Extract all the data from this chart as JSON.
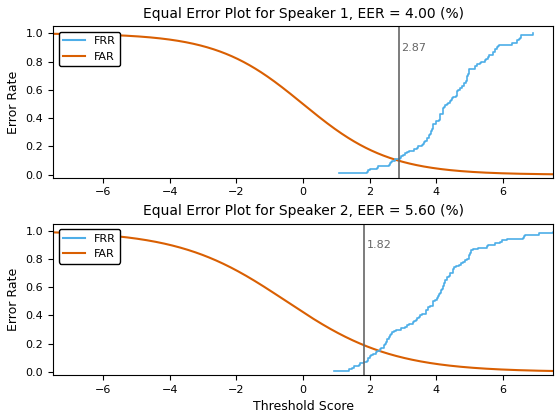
{
  "ax1_title": "Equal Error Plot for Speaker 1, EER = 4.00 (%)",
  "ax2_title": "Equal Error Plot for Speaker 2, EER = 5.60 (%)",
  "xlabel": "Threshold Score",
  "ylabel": "Error Rate",
  "xlim": [
    -7.5,
    7.5
  ],
  "ylim": [
    -0.02,
    1.05
  ],
  "xticks": [
    -6,
    -4,
    -2,
    0,
    2,
    4,
    6
  ],
  "yticks": [
    0,
    0.2,
    0.4,
    0.6,
    0.8,
    1.0
  ],
  "eer1_threshold": 2.87,
  "eer2_threshold": 1.82,
  "frr_color": "#4daee8",
  "far_color": "#d95f02",
  "vline_color": "#666666",
  "legend_frr": "FRR",
  "legend_far": "FAR",
  "sp1_far_mean": 0.0,
  "sp1_far_std": 1.5,
  "sp1_frr_mean": 4.5,
  "sp1_frr_std": 1.5,
  "sp2_far_mean": 0.0,
  "sp2_far_std": 1.8,
  "sp2_frr_mean": 3.8,
  "sp2_frr_std": 1.8
}
